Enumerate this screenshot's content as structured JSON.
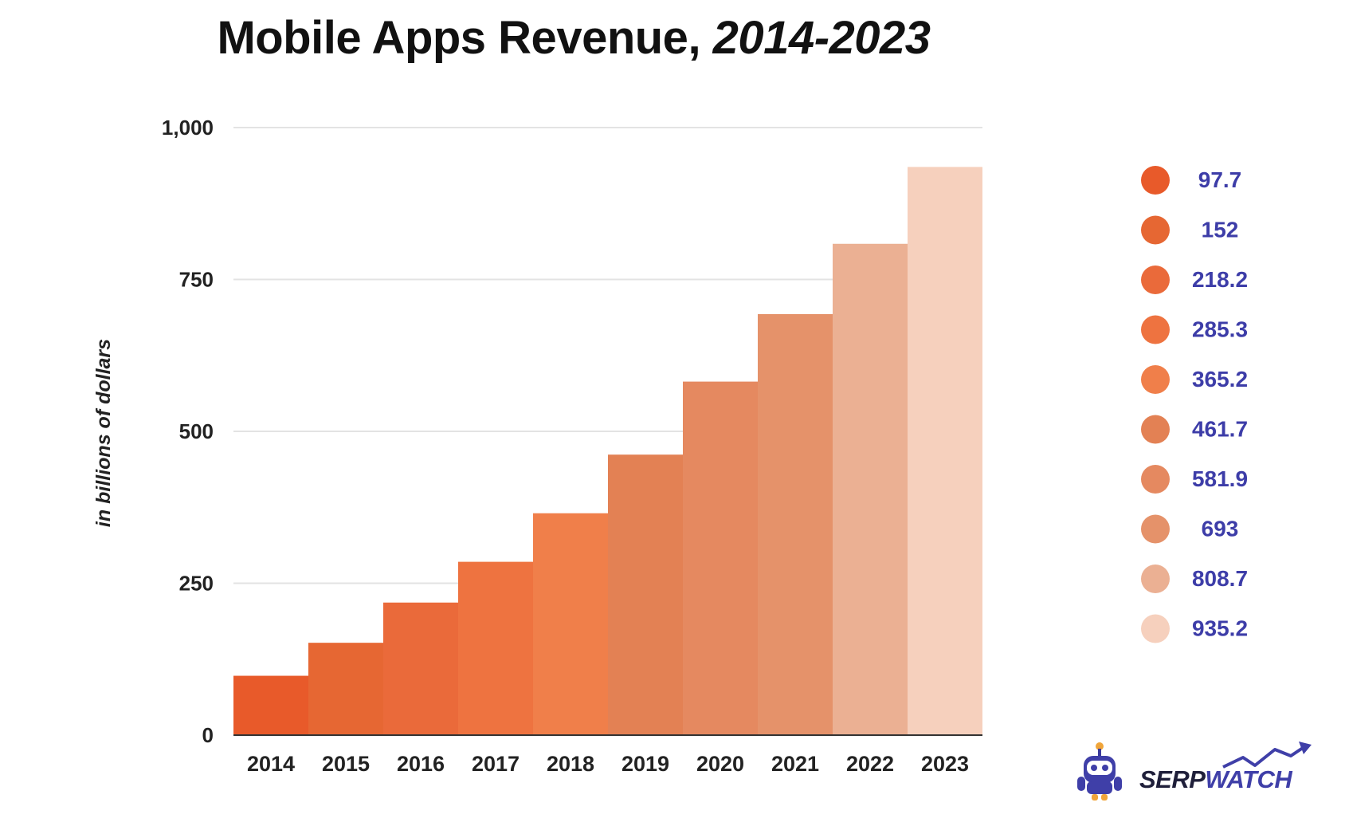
{
  "title": {
    "main": "Mobile Apps Revenue, ",
    "years": "2014-2023"
  },
  "logo": {
    "part1": "SERP",
    "part2": "WATCH"
  },
  "chart_data": {
    "type": "bar",
    "title": "Mobile Apps Revenue, 2014-2023",
    "xlabel": "",
    "ylabel": "in billions of dollars",
    "categories": [
      "2014",
      "2015",
      "2016",
      "2017",
      "2018",
      "2019",
      "2020",
      "2021",
      "2022",
      "2023"
    ],
    "values": [
      97.7,
      152,
      218.2,
      285.3,
      365.2,
      461.7,
      581.9,
      693,
      808.7,
      935.2
    ],
    "value_labels": [
      "97.7",
      "152",
      "218.2",
      "285.3",
      "365.2",
      "461.7",
      "581.9",
      "693",
      "808.7",
      "935.2"
    ],
    "colors": [
      "#e85a2a",
      "#e66733",
      "#ea6a3a",
      "#ee7340",
      "#f07f4a",
      "#e38154",
      "#e58960",
      "#e5926a",
      "#ebb093",
      "#f6d0bd"
    ],
    "ylim": [
      0,
      1000
    ],
    "yticks": [
      0,
      250,
      500,
      750,
      1000
    ],
    "ytick_labels": [
      "0",
      "250",
      "500",
      "750",
      "1,000"
    ],
    "grid": true,
    "legend": "right",
    "label_color": "#3d3da8",
    "grid_color": "#e3e3e3"
  }
}
